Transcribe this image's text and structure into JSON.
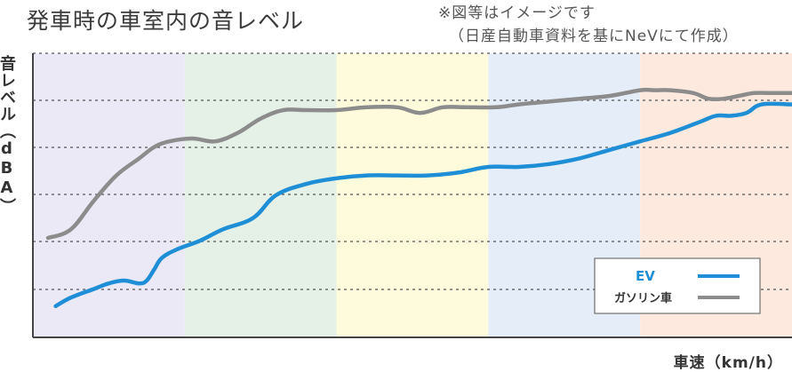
{
  "header": {
    "title": "発車時の車室内の音レベル",
    "note_line1": "※図等はイメージです",
    "note_line2": "（日産自動車資料を基にNeVにて作成）"
  },
  "colors": {
    "ev": "#1e8fd6",
    "gas": "#8c8c8c",
    "bands": [
      "#ebe9f6",
      "#e5f1e7",
      "#fefbdd",
      "#e5edf8",
      "#fde9dd"
    ],
    "grid": "#555555"
  },
  "chart_data": {
    "type": "line",
    "title": "発車時の車室内の音レベル",
    "xlabel": "車速（km/h）",
    "ylabel": "音レベル（dBA）",
    "xlim": [
      0,
      100
    ],
    "ylim": [
      0,
      100
    ],
    "grid": true,
    "legend_position": "bottom-right",
    "series": [
      {
        "name": "EV",
        "x": [
          3,
          5,
          8,
          10,
          12,
          14,
          15,
          16,
          17,
          19,
          22,
          25,
          29,
          32,
          36,
          40,
          44,
          48,
          52,
          56,
          60,
          64,
          68,
          72,
          76,
          80,
          84,
          88,
          90,
          92,
          94,
          96,
          100
        ],
        "y": [
          11,
          14,
          17,
          19,
          20,
          19,
          20,
          24,
          28,
          31,
          34,
          38,
          42,
          50,
          54,
          56,
          57,
          57,
          57,
          58,
          60,
          60,
          61,
          63,
          66,
          69,
          72,
          76,
          78,
          78,
          79,
          82,
          82
        ]
      },
      {
        "name": "ガソリン車",
        "x": [
          2,
          5,
          8,
          11,
          14,
          16,
          18,
          21,
          24,
          27,
          30,
          33,
          36,
          40,
          44,
          48,
          51,
          54,
          57,
          61,
          64,
          68,
          72,
          76,
          80,
          82,
          84,
          87,
          89,
          91,
          93,
          95,
          97,
          100
        ],
        "y": [
          35,
          38,
          48,
          57,
          63,
          67,
          69,
          70,
          69,
          72,
          77,
          80,
          80,
          80,
          81,
          81,
          79,
          81,
          81,
          81,
          82,
          83,
          84,
          85,
          87,
          87,
          87,
          86,
          84,
          84,
          85,
          86,
          86,
          86
        ]
      }
    ]
  },
  "axes": {
    "ylabel": "音レベル（dBA）",
    "xlabel": "車速（km/h）"
  },
  "legend": {
    "ev": "EV",
    "gas": "ガソリン車"
  }
}
